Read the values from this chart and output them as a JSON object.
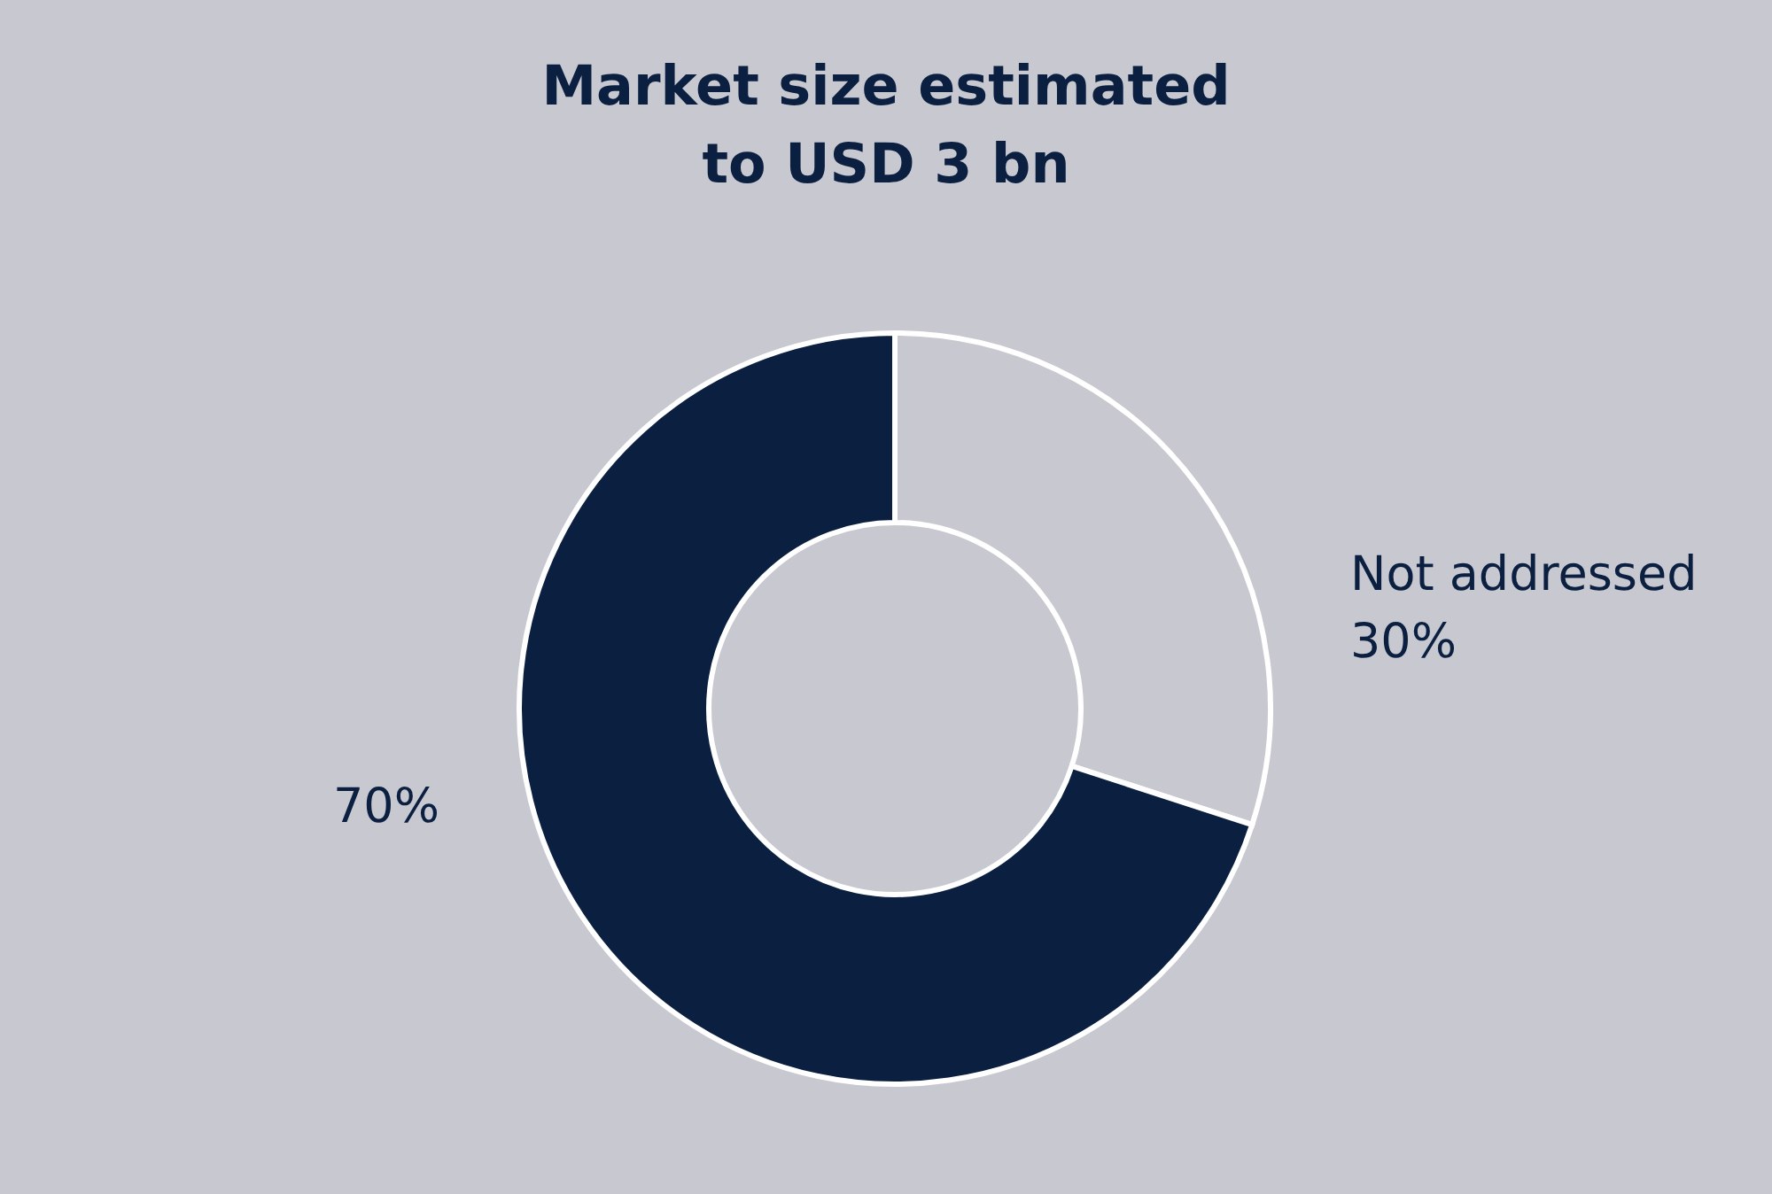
{
  "chart_data": {
    "type": "donut",
    "title": [
      "Market size estimated",
      "to USD 3 bn"
    ],
    "categories": [
      "Not addressed",
      null
    ],
    "values": [
      30,
      70
    ],
    "colors": [
      "#c8c8d0",
      "#0b1f40"
    ],
    "value_labels": [
      "30%",
      "70%"
    ]
  }
}
